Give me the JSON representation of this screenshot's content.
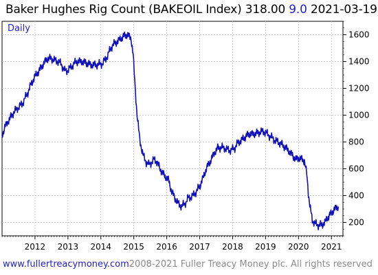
{
  "title": {
    "name": "Baker Hughes Rig Count (BAKEOIL Index)",
    "value": "318.00",
    "change": "9.0",
    "date": "2021-03-19"
  },
  "footer": {
    "site": "www.fullertreacymoney.com",
    "copyright": "2008-2021 Fuller Treacy Money plc. All rights reserved"
  },
  "colors": {
    "line": "#1010b8",
    "change": "#1f1fd0",
    "site": "#1f1fcc",
    "copyright": "#8a8a8a",
    "grid": "#c8c8c8"
  },
  "chart_data": {
    "type": "line",
    "frequency_label": "Daily",
    "x_ticks": [
      "2012",
      "2013",
      "2014",
      "2015",
      "2016",
      "2017",
      "2018",
      "2019",
      "2020",
      "2021"
    ],
    "y_ticks": [
      "200",
      "400",
      "600",
      "800",
      "1000",
      "1200",
      "1400",
      "1600"
    ],
    "xlim": [
      2011.0,
      2021.35
    ],
    "ylim": [
      100,
      1700
    ],
    "grid": true,
    "series": [
      {
        "values": [
          [
            2011.0,
            850
          ],
          [
            2011.1,
            920
          ],
          [
            2011.2,
            960
          ],
          [
            2011.35,
            1020
          ],
          [
            2011.5,
            1060
          ],
          [
            2011.6,
            1080
          ],
          [
            2011.75,
            1150
          ],
          [
            2011.9,
            1240
          ],
          [
            2012.0,
            1290
          ],
          [
            2012.15,
            1340
          ],
          [
            2012.3,
            1400
          ],
          [
            2012.4,
            1425
          ],
          [
            2012.5,
            1420
          ],
          [
            2012.6,
            1410
          ],
          [
            2012.7,
            1400
          ],
          [
            2012.8,
            1380
          ],
          [
            2012.9,
            1330
          ],
          [
            2013.0,
            1335
          ],
          [
            2013.1,
            1360
          ],
          [
            2013.25,
            1400
          ],
          [
            2013.4,
            1400
          ],
          [
            2013.55,
            1390
          ],
          [
            2013.7,
            1375
          ],
          [
            2013.85,
            1375
          ],
          [
            2013.95,
            1380
          ],
          [
            2014.05,
            1385
          ],
          [
            2014.15,
            1420
          ],
          [
            2014.25,
            1470
          ],
          [
            2014.35,
            1520
          ],
          [
            2014.5,
            1550
          ],
          [
            2014.6,
            1570
          ],
          [
            2014.7,
            1590
          ],
          [
            2014.8,
            1600
          ],
          [
            2014.85,
            1590
          ],
          [
            2014.92,
            1570
          ],
          [
            2014.98,
            1450
          ],
          [
            2015.03,
            1250
          ],
          [
            2015.1,
            1000
          ],
          [
            2015.18,
            820
          ],
          [
            2015.28,
            700
          ],
          [
            2015.38,
            650
          ],
          [
            2015.45,
            630
          ],
          [
            2015.55,
            650
          ],
          [
            2015.62,
            670
          ],
          [
            2015.7,
            650
          ],
          [
            2015.8,
            600
          ],
          [
            2015.92,
            550
          ],
          [
            2016.05,
            520
          ],
          [
            2016.15,
            430
          ],
          [
            2016.25,
            380
          ],
          [
            2016.35,
            340
          ],
          [
            2016.45,
            320
          ],
          [
            2016.55,
            340
          ],
          [
            2016.65,
            380
          ],
          [
            2016.8,
            400
          ],
          [
            2016.9,
            430
          ],
          [
            2017.0,
            470
          ],
          [
            2017.1,
            530
          ],
          [
            2017.2,
            600
          ],
          [
            2017.35,
            670
          ],
          [
            2017.45,
            720
          ],
          [
            2017.55,
            755
          ],
          [
            2017.65,
            760
          ],
          [
            2017.75,
            755
          ],
          [
            2017.85,
            740
          ],
          [
            2017.95,
            740
          ],
          [
            2018.05,
            750
          ],
          [
            2018.15,
            790
          ],
          [
            2018.3,
            820
          ],
          [
            2018.4,
            840
          ],
          [
            2018.5,
            860
          ],
          [
            2018.65,
            860
          ],
          [
            2018.8,
            870
          ],
          [
            2018.9,
            880
          ],
          [
            2019.0,
            870
          ],
          [
            2019.1,
            850
          ],
          [
            2019.2,
            830
          ],
          [
            2019.3,
            810
          ],
          [
            2019.45,
            790
          ],
          [
            2019.6,
            760
          ],
          [
            2019.75,
            720
          ],
          [
            2019.85,
            690
          ],
          [
            2019.92,
            670
          ],
          [
            2020.0,
            680
          ],
          [
            2020.1,
            670
          ],
          [
            2020.18,
            660
          ],
          [
            2020.25,
            560
          ],
          [
            2020.3,
            420
          ],
          [
            2020.36,
            300
          ],
          [
            2020.42,
            220
          ],
          [
            2020.5,
            190
          ],
          [
            2020.6,
            180
          ],
          [
            2020.7,
            180
          ],
          [
            2020.8,
            200
          ],
          [
            2020.9,
            240
          ],
          [
            2021.0,
            270
          ],
          [
            2021.1,
            300
          ],
          [
            2021.15,
            310
          ],
          [
            2021.21,
            318
          ]
        ]
      }
    ]
  }
}
